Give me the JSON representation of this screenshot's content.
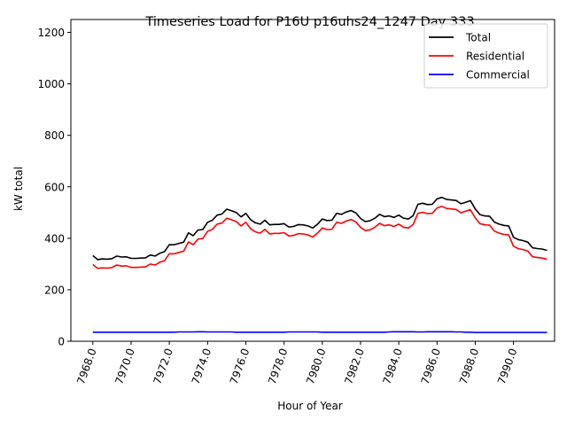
{
  "chart_data": {
    "type": "line",
    "title": "Timeseries Load for P16U p16uhs24_1247  Day 333",
    "xlabel": "Hour of Year",
    "ylabel": "kW total",
    "xlim": [
      7966.85,
      7992.15
    ],
    "ylim": [
      0,
      1250
    ],
    "xticks": [
      7968,
      7970,
      7972,
      7974,
      7976,
      7978,
      7980,
      7982,
      7984,
      7986,
      7988,
      7990
    ],
    "xtick_labels": [
      "7968.0",
      "7970.0",
      "7972.0",
      "7974.0",
      "7976.0",
      "7978.0",
      "7980.0",
      "7982.0",
      "7984.0",
      "7986.0",
      "7988.0",
      "7990.0"
    ],
    "yticks": [
      0,
      200,
      400,
      600,
      800,
      1000,
      1200
    ],
    "ytick_labels": [
      "0",
      "200",
      "400",
      "600",
      "800",
      "1000",
      "1200"
    ],
    "legend_position": "top-right",
    "x": [
      7968.0,
      7968.25,
      7968.5,
      7968.75,
      7969.0,
      7969.25,
      7969.5,
      7969.75,
      7970.0,
      7970.25,
      7970.5,
      7970.75,
      7971.0,
      7971.25,
      7971.5,
      7971.75,
      7972.0,
      7972.25,
      7972.5,
      7972.75,
      7973.0,
      7973.25,
      7973.5,
      7973.75,
      7974.0,
      7974.25,
      7974.5,
      7974.75,
      7975.0,
      7975.25,
      7975.5,
      7975.75,
      7976.0,
      7976.25,
      7976.5,
      7976.75,
      7977.0,
      7977.25,
      7977.5,
      7977.75,
      7978.0,
      7978.25,
      7978.5,
      7978.75,
      7979.0,
      7979.25,
      7979.5,
      7979.75,
      7980.0,
      7980.25,
      7980.5,
      7980.75,
      7981.0,
      7981.25,
      7981.5,
      7981.75,
      7982.0,
      7982.25,
      7982.5,
      7982.75,
      7983.0,
      7983.25,
      7983.5,
      7983.75,
      7984.0,
      7984.25,
      7984.5,
      7984.75,
      7985.0,
      7985.25,
      7985.5,
      7985.75,
      7986.0,
      7986.25,
      7986.5,
      7986.75,
      7987.0,
      7987.25,
      7987.5,
      7987.75,
      7988.0,
      7988.25,
      7988.5,
      7988.75,
      7989.0,
      7989.25,
      7989.5,
      7989.75,
      7990.0,
      7990.25,
      7990.5,
      7990.75,
      7991.0,
      7991.25,
      7991.5,
      7991.75
    ],
    "series": [
      {
        "name": "Total",
        "color": "#000000",
        "values": [
          333,
          317,
          320,
          319,
          321,
          331,
          327,
          328,
          322,
          322,
          323,
          324,
          335,
          331,
          342,
          348,
          375,
          375,
          380,
          385,
          421,
          410,
          432,
          434,
          462,
          470,
          490,
          494,
          513,
          507,
          500,
          483,
          497,
          472,
          460,
          455,
          470,
          452,
          454,
          454,
          457,
          444,
          446,
          453,
          452,
          448,
          440,
          455,
          475,
          469,
          470,
          497,
          493,
          502,
          508,
          499,
          477,
          465,
          468,
          478,
          493,
          484,
          487,
          481,
          490,
          478,
          475,
          488,
          532,
          536,
          531,
          532,
          553,
          559,
          551,
          549,
          547,
          534,
          540,
          546,
          514,
          492,
          487,
          486,
          463,
          455,
          450,
          448,
          404,
          395,
          391,
          385,
          363,
          360,
          358,
          353
        ]
      },
      {
        "name": "Residential",
        "color": "#ff0000",
        "values": [
          298,
          283,
          285,
          284,
          286,
          296,
          292,
          293,
          287,
          287,
          288,
          289,
          300,
          296,
          307,
          313,
          340,
          340,
          345,
          350,
          386,
          375,
          397,
          399,
          427,
          435,
          455,
          459,
          478,
          472,
          465,
          448,
          462,
          437,
          425,
          420,
          435,
          417,
          419,
          419,
          422,
          409,
          411,
          418,
          417,
          413,
          405,
          420,
          440,
          434,
          435,
          462,
          458,
          467,
          473,
          464,
          442,
          430,
          433,
          443,
          458,
          449,
          452,
          446,
          455,
          443,
          440,
          453,
          497,
          501,
          496,
          497,
          518,
          524,
          516,
          514,
          512,
          499,
          505,
          511,
          479,
          457,
          452,
          451,
          428,
          420,
          415,
          413,
          369,
          360,
          356,
          350,
          328,
          325,
          323,
          318
        ]
      },
      {
        "name": "Commercial",
        "color": "#0000ff",
        "values": [
          35,
          35,
          35,
          35,
          35,
          35,
          35,
          35,
          35,
          35,
          35,
          35,
          35,
          35,
          35,
          35,
          35,
          35,
          36,
          36,
          36,
          36,
          37,
          37,
          36,
          36,
          36,
          36,
          36,
          36,
          35,
          35,
          35,
          35,
          35,
          35,
          35,
          35,
          35,
          35,
          35,
          36,
          36,
          36,
          36,
          36,
          36,
          36,
          35,
          35,
          35,
          35,
          35,
          35,
          35,
          35,
          35,
          35,
          35,
          35,
          35,
          35,
          36,
          37,
          37,
          37,
          37,
          37,
          36,
          36,
          37,
          37,
          37,
          37,
          37,
          37,
          36,
          36,
          35,
          35,
          34,
          34,
          34,
          34,
          34,
          34,
          34,
          34,
          34,
          34,
          34,
          34,
          34,
          34,
          34,
          34
        ]
      }
    ]
  }
}
